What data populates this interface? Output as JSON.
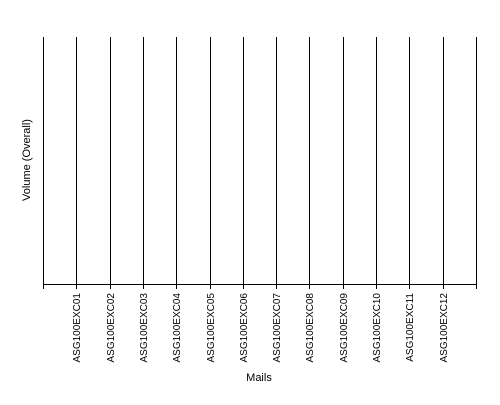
{
  "chart_data": {
    "type": "bar",
    "title": "",
    "xlabel": "Mails",
    "ylabel": "Volume (Overall)",
    "categories": [
      "ASG100EXC01",
      "ASG100EXC02",
      "ASG100EXC03",
      "ASG100EXC04",
      "ASG100EXC05",
      "ASG100EXC06",
      "ASG100EXC07",
      "ASG100EXC08",
      "ASG100EXC09",
      "ASG100EXC10",
      "ASG100EXC11",
      "ASG100EXC12"
    ],
    "values": [
      null,
      null,
      null,
      null,
      null,
      null,
      null,
      null,
      null,
      null,
      null,
      null
    ],
    "grid": {
      "vertical": true,
      "horizontal": false
    },
    "y_tick_labels": false,
    "colors": {
      "axis": "#000000",
      "grid": "#000000",
      "background": "#ffffff"
    }
  }
}
